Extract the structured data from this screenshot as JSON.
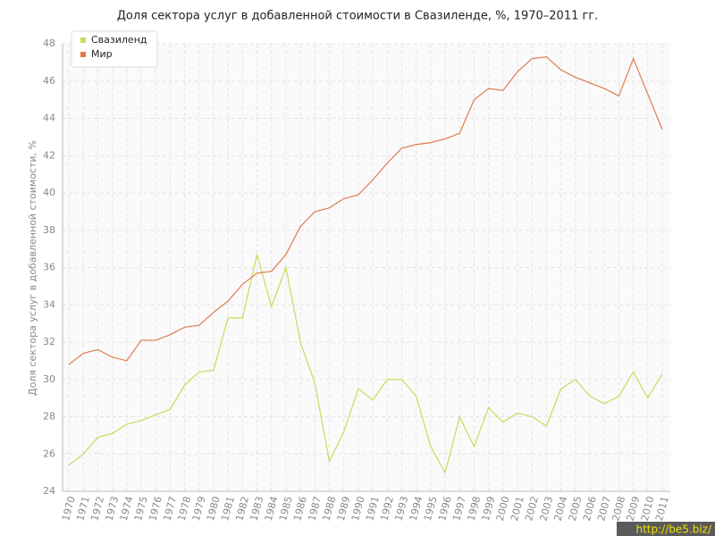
{
  "chart_data": {
    "type": "line",
    "title": "Доля сектора услуг в добавленной стоимости в Свазиленде, %, 1970–2011 гг.",
    "y_label": "Доля сектора услуг в добавленной стоимости, %",
    "x": [
      1970,
      1971,
      1972,
      1973,
      1974,
      1975,
      1976,
      1977,
      1978,
      1979,
      1980,
      1981,
      1982,
      1983,
      1984,
      1985,
      1986,
      1987,
      1988,
      1989,
      1990,
      1991,
      1992,
      1993,
      1994,
      1995,
      1996,
      1997,
      1998,
      1999,
      2000,
      2001,
      2002,
      2003,
      2004,
      2005,
      2006,
      2007,
      2008,
      2009,
      2010,
      2011
    ],
    "xlim": [
      1970,
      2011
    ],
    "series": [
      {
        "name": "Свазиленд",
        "color": "#c5dc5c",
        "values": [
          25.4,
          26.0,
          26.9,
          27.1,
          27.6,
          27.8,
          28.1,
          28.4,
          29.7,
          30.4,
          30.5,
          33.3,
          33.3,
          36.7,
          33.9,
          36.0,
          32.0,
          29.8,
          25.6,
          27.2,
          29.5,
          28.9,
          30.0,
          30.0,
          29.1,
          26.4,
          25.0,
          28.0,
          26.4,
          28.5,
          27.7,
          28.2,
          28.0,
          27.5,
          29.5,
          30.0,
          29.1,
          28.7,
          29.1,
          30.4,
          29.0,
          30.3
        ]
      },
      {
        "name": "Мир",
        "color": "#e07a4f",
        "values": [
          30.8,
          31.4,
          31.6,
          31.2,
          31.0,
          32.1,
          32.1,
          32.4,
          32.8,
          32.9,
          33.6,
          34.2,
          35.1,
          35.7,
          35.8,
          36.7,
          38.2,
          39.0,
          39.2,
          39.7,
          39.9,
          40.7,
          41.6,
          42.4,
          42.6,
          42.7,
          42.9,
          43.2,
          45.0,
          45.6,
          45.5,
          46.5,
          47.2,
          47.3,
          46.6,
          46.2,
          45.9,
          45.6,
          45.2,
          47.2,
          45.3,
          43.4
        ]
      }
    ],
    "ylim": [
      24,
      48
    ],
    "yticks": [
      24,
      26,
      28,
      30,
      32,
      34,
      36,
      38,
      40,
      42,
      44,
      46,
      48
    ],
    "grid": true,
    "legend": "top-left",
    "watermark": "http://be5.biz/"
  }
}
